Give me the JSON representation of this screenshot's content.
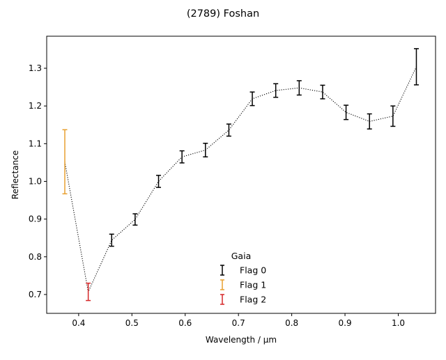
{
  "chart_data": {
    "type": "scatter",
    "title": "(2789) Foshan",
    "xlabel": "Wavelength / μm",
    "ylabel": "Reflectance",
    "xlim": [
      0.34,
      1.07
    ],
    "ylim": [
      0.65,
      1.385
    ],
    "xticks": [
      0.4,
      0.5,
      0.6,
      0.7,
      0.8,
      0.9,
      1.0
    ],
    "xtick_labels": [
      "0.4",
      "0.5",
      "0.6",
      "0.7",
      "0.8",
      "0.9",
      "1.0"
    ],
    "yticks": [
      0.7,
      0.8,
      0.9,
      1.0,
      1.1,
      1.2,
      1.3
    ],
    "ytick_labels": [
      "0.7",
      "0.8",
      "0.9",
      "1.0",
      "1.1",
      "1.2",
      "1.3"
    ],
    "grid": false,
    "connecting_line": {
      "style": "dotted",
      "color": "#000000"
    },
    "legend": {
      "title": "Gaia",
      "placement": "lower-center",
      "entries": [
        {
          "label": "Flag 0",
          "color": "#000000"
        },
        {
          "label": "Flag 1",
          "color": "#e8a030"
        },
        {
          "label": "Flag 2",
          "color": "#d62728"
        }
      ]
    },
    "points": [
      {
        "x": 0.374,
        "y": 1.052,
        "err": 0.085,
        "flag": 1
      },
      {
        "x": 0.418,
        "y": 0.707,
        "err": 0.023,
        "flag": 2
      },
      {
        "x": 0.462,
        "y": 0.844,
        "err": 0.016,
        "flag": 0
      },
      {
        "x": 0.506,
        "y": 0.899,
        "err": 0.015,
        "flag": 0
      },
      {
        "x": 0.55,
        "y": 1.0,
        "err": 0.016,
        "flag": 0
      },
      {
        "x": 0.594,
        "y": 1.065,
        "err": 0.016,
        "flag": 0
      },
      {
        "x": 0.638,
        "y": 1.083,
        "err": 0.018,
        "flag": 0
      },
      {
        "x": 0.682,
        "y": 1.136,
        "err": 0.016,
        "flag": 0
      },
      {
        "x": 0.726,
        "y": 1.219,
        "err": 0.018,
        "flag": 0
      },
      {
        "x": 0.77,
        "y": 1.241,
        "err": 0.018,
        "flag": 0
      },
      {
        "x": 0.814,
        "y": 1.248,
        "err": 0.019,
        "flag": 0
      },
      {
        "x": 0.858,
        "y": 1.237,
        "err": 0.018,
        "flag": 0
      },
      {
        "x": 0.902,
        "y": 1.183,
        "err": 0.019,
        "flag": 0
      },
      {
        "x": 0.946,
        "y": 1.159,
        "err": 0.02,
        "flag": 0
      },
      {
        "x": 0.99,
        "y": 1.173,
        "err": 0.027,
        "flag": 0
      },
      {
        "x": 1.034,
        "y": 1.304,
        "err": 0.048,
        "flag": 0
      }
    ]
  }
}
